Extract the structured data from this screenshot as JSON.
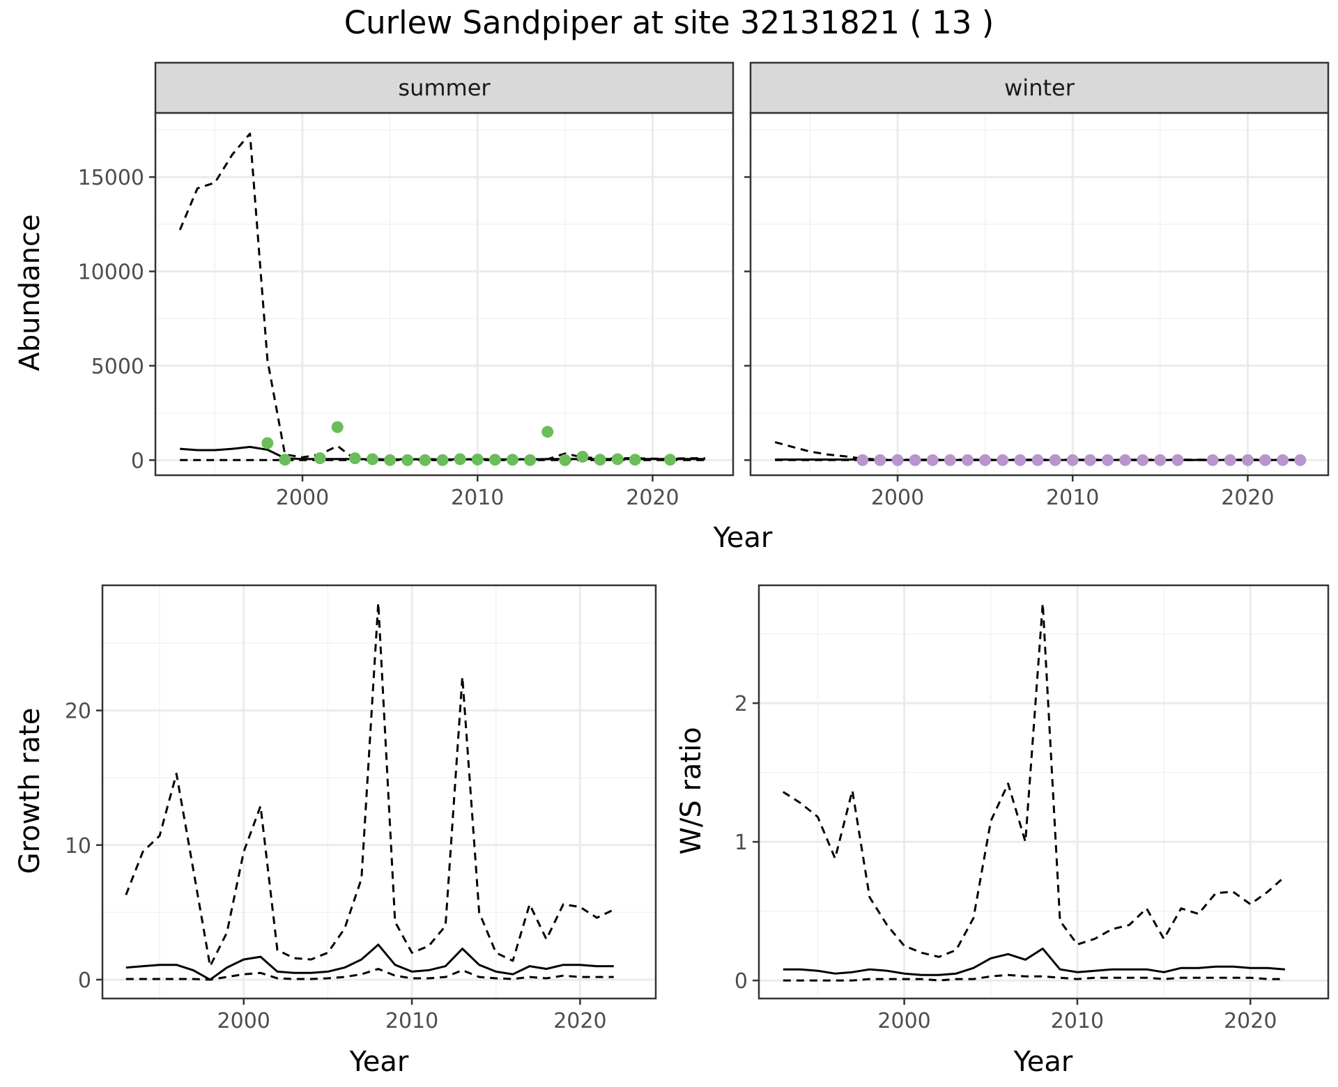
{
  "figure": {
    "title": "Curlew Sandpiper at site 32131821 ( 13 )"
  },
  "colors": {
    "summer_points": "#6abd5a",
    "winter_points": "#b995cc",
    "lines": "#000000",
    "strip_fill": "#d9d9d9",
    "grid_major": "#ebebeb",
    "grid_minor": "#f2f2f2",
    "panel_border": "#333333"
  },
  "chart_data": [
    {
      "id": "abundance",
      "type": "line",
      "facets": [
        "summer",
        "winter"
      ],
      "xlabel": "Year",
      "ylabel": "Abundance",
      "xlim": [
        1991.6,
        2024.6
      ],
      "ylim": [
        -800,
        18400
      ],
      "xticks": [
        2000,
        2010,
        2020
      ],
      "yticks": [
        0,
        5000,
        10000,
        15000
      ],
      "grid": true,
      "panels": [
        {
          "strip": "summer",
          "series": [
            {
              "style": "solid",
              "x": [
                1993,
                1994,
                1995,
                1996,
                1997,
                1998,
                1999,
                2000,
                2001,
                2002,
                2003,
                2004,
                2005,
                2006,
                2007,
                2008,
                2009,
                2010,
                2011,
                2012,
                2013,
                2014,
                2015,
                2016,
                2017,
                2018,
                2019,
                2020,
                2021,
                2022,
                2023
              ],
              "y": [
                600,
                530,
                530,
                600,
                700,
                550,
                100,
                60,
                60,
                60,
                60,
                40,
                40,
                40,
                40,
                40,
                40,
                40,
                40,
                40,
                40,
                60,
                60,
                60,
                60,
                60,
                60,
                60,
                60,
                60,
                60
              ]
            },
            {
              "style": "dashed",
              "x": [
                1993,
                1994,
                1995,
                1996,
                1997,
                1998,
                1999,
                2000,
                2001,
                2002,
                2003,
                2004,
                2005,
                2006,
                2007,
                2008,
                2009,
                2010,
                2011,
                2012,
                2013,
                2014,
                2015,
                2016,
                2017,
                2018,
                2019,
                2020,
                2021,
                2022,
                2023
              ],
              "y": [
                12200,
                14400,
                14700,
                16200,
                17300,
                5300,
                300,
                150,
                300,
                750,
                50,
                50,
                50,
                50,
                50,
                50,
                50,
                50,
                50,
                50,
                50,
                50,
                350,
                150,
                100,
                100,
                100,
                80,
                80,
                100,
                100
              ]
            },
            {
              "style": "dashed",
              "x": [
                1993,
                1994,
                1995,
                1996,
                1997,
                1998,
                1999,
                2000,
                2001,
                2002,
                2003,
                2004,
                2005,
                2006,
                2007,
                2008,
                2009,
                2010,
                2011,
                2012,
                2013,
                2014,
                2015,
                2016,
                2017,
                2018,
                2019,
                2020,
                2021,
                2022,
                2023
              ],
              "y": [
                0,
                0,
                0,
                0,
                0,
                0,
                0,
                0,
                0,
                0,
                0,
                0,
                0,
                0,
                0,
                0,
                0,
                0,
                0,
                0,
                0,
                0,
                0,
                0,
                0,
                0,
                0,
                0,
                0,
                0,
                0
              ]
            }
          ],
          "points": {
            "x": [
              1998,
              1999,
              2001,
              2002,
              2003,
              2004,
              2005,
              2006,
              2007,
              2008,
              2009,
              2010,
              2011,
              2012,
              2013,
              2014,
              2015,
              2016,
              2017,
              2018,
              2019,
              2021
            ],
            "y": [
              900,
              20,
              100,
              1750,
              100,
              50,
              0,
              0,
              0,
              0,
              50,
              30,
              20,
              20,
              0,
              1500,
              0,
              180,
              20,
              50,
              20,
              20
            ]
          }
        },
        {
          "strip": "winter",
          "series": [
            {
              "style": "solid",
              "x": [
                1993,
                1994,
                1995,
                1996,
                1997,
                1998,
                1999,
                2000,
                2001,
                2002,
                2003,
                2004,
                2005,
                2006,
                2007,
                2008,
                2009,
                2010,
                2011,
                2012,
                2013,
                2014,
                2015,
                2016,
                2017,
                2018,
                2019,
                2020,
                2021,
                2022,
                2023
              ],
              "y": [
                30,
                30,
                30,
                30,
                30,
                30,
                10,
                10,
                10,
                10,
                10,
                10,
                10,
                10,
                10,
                10,
                10,
                10,
                10,
                10,
                10,
                10,
                10,
                10,
                10,
                10,
                10,
                10,
                10,
                10,
                10
              ]
            },
            {
              "style": "dashed",
              "x": [
                1993,
                1994,
                1995,
                1996,
                1997,
                1998,
                1999,
                2000,
                2001,
                2002,
                2003,
                2004,
                2005,
                2006,
                2007,
                2008,
                2009,
                2010,
                2011,
                2012,
                2013,
                2014,
                2015,
                2016,
                2017,
                2018,
                2019,
                2020,
                2021,
                2022,
                2023
              ],
              "y": [
                950,
                700,
                450,
                300,
                200,
                80,
                30,
                20,
                20,
                20,
                20,
                20,
                20,
                20,
                20,
                20,
                20,
                20,
                20,
                20,
                20,
                20,
                20,
                20,
                20,
                20,
                20,
                20,
                20,
                20,
                20
              ]
            },
            {
              "style": "dashed",
              "x": [
                1993,
                1994,
                1995,
                1996,
                1997,
                1998,
                1999,
                2000,
                2001,
                2002,
                2003,
                2004,
                2005,
                2006,
                2007,
                2008,
                2009,
                2010,
                2011,
                2012,
                2013,
                2014,
                2015,
                2016,
                2017,
                2018,
                2019,
                2020,
                2021,
                2022,
                2023
              ],
              "y": [
                0,
                0,
                0,
                0,
                0,
                0,
                0,
                0,
                0,
                0,
                0,
                0,
                0,
                0,
                0,
                0,
                0,
                0,
                0,
                0,
                0,
                0,
                0,
                0,
                0,
                0,
                0,
                0,
                0,
                0,
                0
              ]
            }
          ],
          "points": {
            "x": [
              1998,
              1999,
              2000,
              2001,
              2002,
              2003,
              2004,
              2005,
              2006,
              2007,
              2008,
              2009,
              2010,
              2011,
              2012,
              2013,
              2014,
              2015,
              2016,
              2018,
              2019,
              2020,
              2021,
              2022,
              2023
            ],
            "y": [
              0,
              0,
              0,
              0,
              0,
              0,
              0,
              0,
              0,
              0,
              0,
              0,
              0,
              0,
              0,
              0,
              0,
              0,
              0,
              0,
              0,
              0,
              0,
              0,
              0
            ]
          }
        }
      ]
    },
    {
      "id": "growth",
      "type": "line",
      "xlabel": "Year",
      "ylabel": "Growth rate",
      "xlim": [
        1991.6,
        2024.5
      ],
      "ylim": [
        -1.4,
        29.3
      ],
      "xticks": [
        2000,
        2010,
        2020
      ],
      "yticks": [
        0,
        10,
        20
      ],
      "grid": true,
      "series": [
        {
          "style": "solid",
          "x": [
            1993,
            1994,
            1995,
            1996,
            1997,
            1998,
            1999,
            2000,
            2001,
            2002,
            2003,
            2004,
            2005,
            2006,
            2007,
            2008,
            2009,
            2010,
            2011,
            2012,
            2013,
            2014,
            2015,
            2016,
            2017,
            2018,
            2019,
            2020,
            2021,
            2022
          ],
          "y": [
            0.9,
            1.0,
            1.1,
            1.1,
            0.7,
            0.0,
            0.9,
            1.5,
            1.7,
            0.6,
            0.5,
            0.5,
            0.6,
            0.9,
            1.5,
            2.6,
            1.1,
            0.6,
            0.7,
            1.0,
            2.3,
            1.1,
            0.6,
            0.4,
            1.0,
            0.8,
            1.1,
            1.1,
            1.0,
            1.0
          ]
        },
        {
          "style": "dashed",
          "x": [
            1993,
            1994,
            1995,
            1996,
            1997,
            1998,
            1999,
            2000,
            2001,
            2002,
            2003,
            2004,
            2005,
            2006,
            2007,
            2008,
            2009,
            2010,
            2011,
            2012,
            2013,
            2014,
            2015,
            2016,
            2017,
            2018,
            2019,
            2020,
            2021,
            2022
          ],
          "y": [
            6.3,
            9.5,
            10.7,
            15.3,
            8.2,
            1.0,
            3.5,
            9.5,
            12.9,
            2.2,
            1.6,
            1.5,
            2.0,
            3.8,
            7.5,
            28.0,
            4.3,
            2.0,
            2.5,
            4.0,
            22.5,
            5.0,
            2.0,
            1.4,
            5.6,
            3.0,
            5.6,
            5.4,
            4.6,
            5.2
          ]
        },
        {
          "style": "dashed",
          "x": [
            1993,
            1994,
            1995,
            1996,
            1997,
            1998,
            1999,
            2000,
            2001,
            2002,
            2003,
            2004,
            2005,
            2006,
            2007,
            2008,
            2009,
            2010,
            2011,
            2012,
            2013,
            2014,
            2015,
            2016,
            2017,
            2018,
            2019,
            2020,
            2021,
            2022
          ],
          "y": [
            0.05,
            0.05,
            0.05,
            0.05,
            0.05,
            0.0,
            0.2,
            0.4,
            0.5,
            0.1,
            0.05,
            0.05,
            0.1,
            0.2,
            0.4,
            0.8,
            0.3,
            0.1,
            0.1,
            0.2,
            0.7,
            0.2,
            0.1,
            0.05,
            0.2,
            0.1,
            0.3,
            0.2,
            0.2,
            0.2
          ]
        }
      ]
    },
    {
      "id": "ws_ratio",
      "type": "line",
      "xlabel": "Year",
      "ylabel": "W/S ratio",
      "xlim": [
        1991.6,
        2024.5
      ],
      "ylim": [
        -0.13,
        2.85
      ],
      "xticks": [
        2000,
        2010,
        2020
      ],
      "yticks": [
        0,
        1,
        2
      ],
      "grid": true,
      "series": [
        {
          "style": "solid",
          "x": [
            1993,
            1994,
            1995,
            1996,
            1997,
            1998,
            1999,
            2000,
            2001,
            2002,
            2003,
            2004,
            2005,
            2006,
            2007,
            2008,
            2009,
            2010,
            2011,
            2012,
            2013,
            2014,
            2015,
            2016,
            2017,
            2018,
            2019,
            2020,
            2021,
            2022
          ],
          "y": [
            0.08,
            0.08,
            0.07,
            0.05,
            0.06,
            0.08,
            0.07,
            0.05,
            0.04,
            0.04,
            0.05,
            0.09,
            0.16,
            0.19,
            0.15,
            0.23,
            0.08,
            0.06,
            0.07,
            0.08,
            0.08,
            0.08,
            0.06,
            0.09,
            0.09,
            0.1,
            0.1,
            0.09,
            0.09,
            0.08
          ]
        },
        {
          "style": "dashed",
          "x": [
            1993,
            1994,
            1995,
            1996,
            1997,
            1998,
            1999,
            2000,
            2001,
            2002,
            2003,
            2004,
            2005,
            2006,
            2007,
            2008,
            2009,
            2010,
            2011,
            2012,
            2013,
            2014,
            2015,
            2016,
            2017,
            2018,
            2019,
            2020,
            2021,
            2022
          ],
          "y": [
            1.36,
            1.28,
            1.18,
            0.88,
            1.37,
            0.6,
            0.4,
            0.25,
            0.2,
            0.17,
            0.22,
            0.45,
            1.15,
            1.42,
            1.0,
            2.72,
            0.43,
            0.26,
            0.3,
            0.37,
            0.4,
            0.52,
            0.3,
            0.52,
            0.48,
            0.63,
            0.64,
            0.55,
            0.64,
            0.75
          ]
        },
        {
          "style": "dashed",
          "x": [
            1993,
            1994,
            1995,
            1996,
            1997,
            1998,
            1999,
            2000,
            2001,
            2002,
            2003,
            2004,
            2005,
            2006,
            2007,
            2008,
            2009,
            2010,
            2011,
            2012,
            2013,
            2014,
            2015,
            2016,
            2017,
            2018,
            2019,
            2020,
            2021,
            2022
          ],
          "y": [
            0.0,
            0.0,
            0.0,
            0.0,
            0.0,
            0.01,
            0.01,
            0.01,
            0.01,
            0.0,
            0.01,
            0.01,
            0.03,
            0.04,
            0.03,
            0.03,
            0.02,
            0.01,
            0.02,
            0.02,
            0.02,
            0.02,
            0.01,
            0.02,
            0.02,
            0.02,
            0.02,
            0.02,
            0.01,
            0.01
          ]
        }
      ]
    }
  ]
}
